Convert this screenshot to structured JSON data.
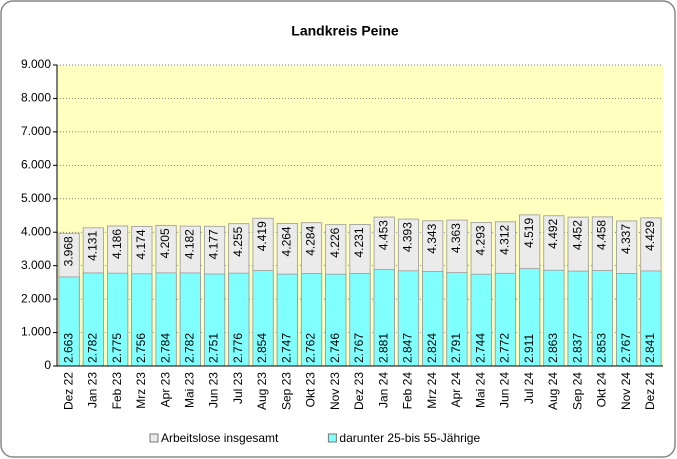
{
  "chart_data": {
    "type": "bar",
    "title": "Landkreis Peine",
    "categories": [
      "Dez 22",
      "Jan 23",
      "Feb 23",
      "Mrz 23",
      "Apr 23",
      "Mai 23",
      "Jun 23",
      "Jul 23",
      "Aug 23",
      "Sep 23",
      "Okt 23",
      "Nov 23",
      "Dez 23",
      "Jan 24",
      "Feb 24",
      "Mrz 24",
      "Apr 24",
      "Mai 24",
      "Jun 24",
      "Jul 24",
      "Aug 24",
      "Sep 24",
      "Okt 24",
      "Nov 24",
      "Dez 24"
    ],
    "series": [
      {
        "name": "Arbeitslose insgesamt",
        "color": "#ebebeb",
        "values": [
          3968,
          4131,
          4186,
          4174,
          4205,
          4182,
          4177,
          4255,
          4419,
          4264,
          4284,
          4226,
          4231,
          4453,
          4393,
          4343,
          4363,
          4293,
          4312,
          4519,
          4492,
          4452,
          4458,
          4337,
          4429
        ],
        "value_labels": [
          "3.968",
          "4.131",
          "4.186",
          "4.174",
          "4.205",
          "4.182",
          "4.177",
          "4.255",
          "4.419",
          "4.264",
          "4.284",
          "4.226",
          "4.231",
          "4.453",
          "4.393",
          "4.343",
          "4.363",
          "4.293",
          "4.312",
          "4.519",
          "4.492",
          "4.452",
          "4.458",
          "4.337",
          "4.429"
        ]
      },
      {
        "name": "darunter 25-bis 55-Jährige",
        "color": "#80ffff",
        "values": [
          2663,
          2782,
          2775,
          2756,
          2784,
          2782,
          2751,
          2776,
          2854,
          2747,
          2762,
          2746,
          2767,
          2881,
          2847,
          2824,
          2791,
          2744,
          2772,
          2911,
          2863,
          2837,
          2853,
          2767,
          2841
        ],
        "value_labels": [
          "2.663",
          "2.782",
          "2.775",
          "2.756",
          "2.784",
          "2.782",
          "2.751",
          "2.776",
          "2.854",
          "2.747",
          "2.762",
          "2.746",
          "2.767",
          "2.881",
          "2.847",
          "2.824",
          "2.791",
          "2.744",
          "2.772",
          "2.911",
          "2.863",
          "2.837",
          "2.853",
          "2.767",
          "2.841"
        ]
      }
    ],
    "ylim": [
      0,
      9000
    ],
    "yticks": [
      0,
      {
        "value": 1000,
        "label": "1.000"
      },
      {
        "value": 2000,
        "label": "2.000"
      },
      {
        "value": 3000,
        "label": "3.000"
      },
      {
        "value": 4000,
        "label": "4.000"
      },
      {
        "value": 5000,
        "label": "5.000"
      },
      {
        "value": 6000,
        "label": "6.000"
      },
      {
        "value": 7000,
        "label": "7.000"
      },
      {
        "value": 8000,
        "label": "8.000"
      },
      {
        "value": 9000,
        "label": "9.000"
      }
    ],
    "grid": true
  }
}
